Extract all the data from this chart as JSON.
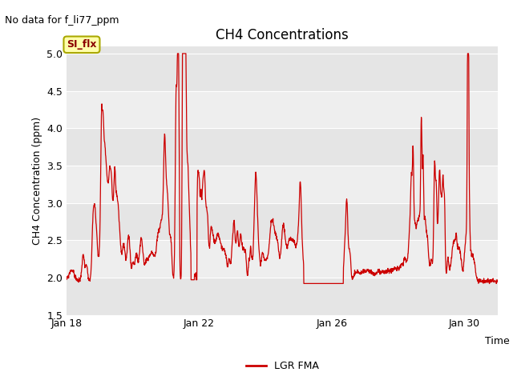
{
  "title": "CH4 Concentrations",
  "xlabel": "Time",
  "ylabel": "CH4 Concentration (ppm)",
  "note": "No data for f_li77_ppm",
  "ylim": [
    1.5,
    5.1
  ],
  "yticks": [
    1.5,
    2.0,
    2.5,
    3.0,
    3.5,
    4.0,
    4.5,
    5.0
  ],
  "xtick_positions": [
    18,
    22,
    26,
    30
  ],
  "xtick_labels": [
    "Jan 18",
    "Jan 22",
    "Jan 26",
    "Jan 30"
  ],
  "xlim": [
    18,
    31
  ],
  "legend_label": "LGR FMA",
  "legend_line_color": "#cc0000",
  "line_color": "#cc0000",
  "line_width": 0.9,
  "background_color": "#ffffff",
  "plot_bg_color": "#e5e5e5",
  "band_light_color": "#eeeeee",
  "si_flx_label": "SI_flx",
  "si_flx_bg": "#ffffaa",
  "si_flx_border": "#aaa800",
  "si_flx_text_color": "#8b0000",
  "title_fontsize": 12,
  "label_fontsize": 9,
  "tick_fontsize": 9,
  "note_fontsize": 9
}
